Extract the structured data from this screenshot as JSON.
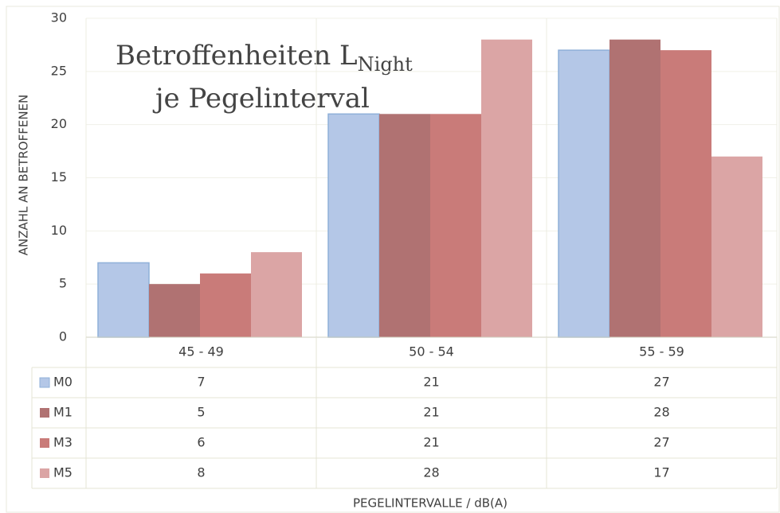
{
  "chart_data": {
    "type": "bar",
    "title": {
      "main": "Betroffenheiten L",
      "subscript": "Night",
      "line2": "je Pegelinterval"
    },
    "y_label": "ANZAHL AN BETROFFENEN",
    "x_label": "PEGELINTERVALLE / dB(A)",
    "categories": [
      "45 - 49",
      "50 - 54",
      "55 - 59"
    ],
    "series": [
      {
        "name": "M0",
        "color": "#b4c7e7",
        "values": [
          7,
          21,
          27
        ]
      },
      {
        "name": "M1",
        "color": "#b07272",
        "values": [
          5,
          21,
          28
        ]
      },
      {
        "name": "M3",
        "color": "#c97b79",
        "values": [
          6,
          21,
          27
        ]
      },
      {
        "name": "M5",
        "color": "#dba5a5",
        "values": [
          8,
          28,
          17
        ]
      }
    ],
    "ylim": [
      0,
      30
    ],
    "yticks": [
      0,
      5,
      10,
      15,
      20,
      25,
      30
    ],
    "grid": true,
    "data_table": true
  }
}
